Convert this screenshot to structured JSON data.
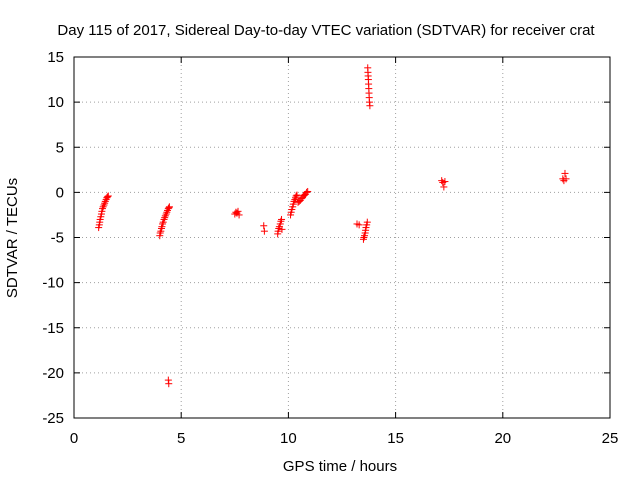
{
  "chart_data": {
    "type": "scatter",
    "title": "Day 115 of 2017, Sidereal Day-to-day VTEC variation (SDTVAR) for receiver crat",
    "xlabel": "GPS time / hours",
    "ylabel": "SDTVAR / TECUs",
    "xlim": [
      0,
      25
    ],
    "ylim": [
      -25,
      15
    ],
    "xticks": [
      0,
      5,
      10,
      15,
      20,
      25
    ],
    "yticks": [
      -25,
      -20,
      -15,
      -10,
      -5,
      0,
      5,
      10,
      15
    ],
    "grid": true,
    "marker": "+",
    "color": "#ff0000",
    "series": [
      {
        "name": "SDTVAR",
        "points": [
          [
            1.15,
            -3.9
          ],
          [
            1.18,
            -3.6
          ],
          [
            1.2,
            -3.3
          ],
          [
            1.22,
            -3.0
          ],
          [
            1.25,
            -2.7
          ],
          [
            1.28,
            -2.4
          ],
          [
            1.3,
            -2.1
          ],
          [
            1.33,
            -1.8
          ],
          [
            1.36,
            -1.6
          ],
          [
            1.4,
            -1.4
          ],
          [
            1.43,
            -1.2
          ],
          [
            1.46,
            -1.0
          ],
          [
            1.5,
            -0.8
          ],
          [
            1.53,
            -0.6
          ],
          [
            1.56,
            -0.5
          ],
          [
            1.6,
            -0.4
          ],
          [
            4.0,
            -4.8
          ],
          [
            4.02,
            -4.5
          ],
          [
            4.05,
            -4.3
          ],
          [
            4.08,
            -4.0
          ],
          [
            4.1,
            -3.8
          ],
          [
            4.13,
            -3.5
          ],
          [
            4.16,
            -3.3
          ],
          [
            4.2,
            -3.0
          ],
          [
            4.23,
            -2.8
          ],
          [
            4.26,
            -2.6
          ],
          [
            4.3,
            -2.4
          ],
          [
            4.33,
            -2.2
          ],
          [
            4.36,
            -2.0
          ],
          [
            4.4,
            -1.8
          ],
          [
            4.43,
            -1.7
          ],
          [
            4.45,
            -1.6
          ],
          [
            4.4,
            -20.8
          ],
          [
            4.42,
            -21.2
          ],
          [
            7.5,
            -2.4
          ],
          [
            7.55,
            -2.2
          ],
          [
            7.6,
            -2.3
          ],
          [
            7.65,
            -2.1
          ],
          [
            7.7,
            -2.5
          ],
          [
            8.85,
            -3.7
          ],
          [
            8.88,
            -4.3
          ],
          [
            9.5,
            -4.6
          ],
          [
            9.52,
            -4.3
          ],
          [
            9.55,
            -4.0
          ],
          [
            9.58,
            -3.8
          ],
          [
            9.62,
            -3.5
          ],
          [
            9.65,
            -3.2
          ],
          [
            9.68,
            -3.0
          ],
          [
            9.7,
            -4.1
          ],
          [
            10.1,
            -2.5
          ],
          [
            10.13,
            -2.2
          ],
          [
            10.16,
            -1.9
          ],
          [
            10.2,
            -1.6
          ],
          [
            10.23,
            -1.3
          ],
          [
            10.26,
            -1.0
          ],
          [
            10.3,
            -0.8
          ],
          [
            10.33,
            -0.6
          ],
          [
            10.36,
            -0.4
          ],
          [
            10.4,
            -0.3
          ],
          [
            10.45,
            -1.1
          ],
          [
            10.5,
            -1.0
          ],
          [
            10.55,
            -0.9
          ],
          [
            10.6,
            -0.7
          ],
          [
            10.65,
            -0.6
          ],
          [
            10.7,
            -0.4
          ],
          [
            10.75,
            -0.3
          ],
          [
            10.8,
            -0.2
          ],
          [
            10.85,
            0.0
          ],
          [
            10.9,
            0.1
          ],
          [
            13.2,
            -3.5
          ],
          [
            13.3,
            -3.6
          ],
          [
            13.5,
            -5.2
          ],
          [
            13.52,
            -5.0
          ],
          [
            13.55,
            -4.8
          ],
          [
            13.58,
            -4.5
          ],
          [
            13.6,
            -4.2
          ],
          [
            13.62,
            -3.9
          ],
          [
            13.65,
            -3.6
          ],
          [
            13.68,
            -3.3
          ],
          [
            13.7,
            13.8
          ],
          [
            13.71,
            13.3
          ],
          [
            13.72,
            12.9
          ],
          [
            13.73,
            12.5
          ],
          [
            13.74,
            12.0
          ],
          [
            13.75,
            11.5
          ],
          [
            13.76,
            11.0
          ],
          [
            13.77,
            10.5
          ],
          [
            13.78,
            10.0
          ],
          [
            13.8,
            9.6
          ],
          [
            17.15,
            1.3
          ],
          [
            17.2,
            1.1
          ],
          [
            17.25,
            0.6
          ],
          [
            17.3,
            1.2
          ],
          [
            22.8,
            1.5
          ],
          [
            22.85,
            1.3
          ],
          [
            22.9,
            2.1
          ],
          [
            22.95,
            1.5
          ]
        ]
      }
    ]
  }
}
